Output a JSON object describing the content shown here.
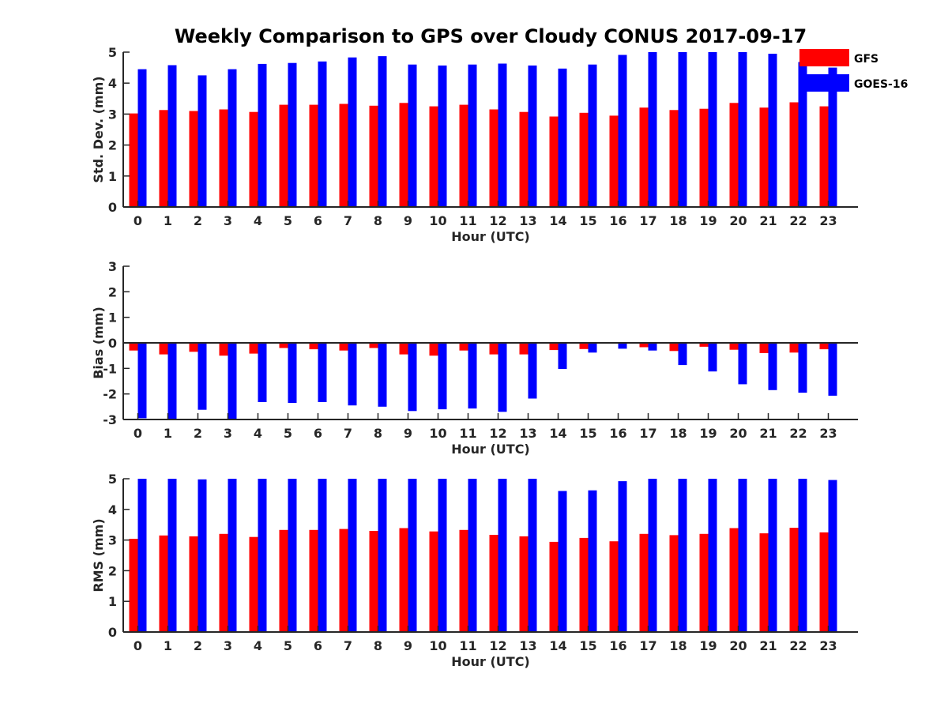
{
  "title": "Weekly Comparison to GPS over Cloudy CONUS 2017-09-17",
  "legend": {
    "placement": "top-right",
    "items": [
      {
        "label": "GFS",
        "color": "#ff0000"
      },
      {
        "label": "GOES-16",
        "color": "#0000ff"
      }
    ]
  },
  "chart_data": [
    {
      "type": "bar",
      "categories": [
        "0",
        "1",
        "2",
        "3",
        "4",
        "5",
        "6",
        "7",
        "8",
        "9",
        "10",
        "11",
        "12",
        "13",
        "14",
        "15",
        "16",
        "17",
        "18",
        "19",
        "20",
        "21",
        "22",
        "23"
      ],
      "xlabel": "Hour (UTC)",
      "ylabel": "Std. Dev. (mm)",
      "ylim": [
        0,
        5
      ],
      "yticks": [
        "0",
        "1",
        "2",
        "3",
        "4",
        "5"
      ],
      "series": [
        {
          "name": "GFS",
          "color": "#ff0000",
          "values": [
            3.02,
            3.13,
            3.1,
            3.15,
            3.07,
            3.3,
            3.3,
            3.33,
            3.27,
            3.36,
            3.25,
            3.3,
            3.15,
            3.07,
            2.92,
            3.04,
            2.95,
            3.21,
            3.13,
            3.17,
            3.36,
            3.21,
            3.38,
            3.25
          ]
        },
        {
          "name": "GOES-16",
          "color": "#0000ff",
          "values": [
            4.45,
            4.58,
            4.25,
            4.45,
            4.62,
            4.65,
            4.7,
            4.83,
            4.87,
            4.6,
            4.57,
            4.6,
            4.63,
            4.57,
            4.47,
            4.6,
            4.91,
            5.0,
            5.0,
            5.0,
            5.0,
            4.95,
            4.68,
            4.5
          ]
        }
      ]
    },
    {
      "type": "bar",
      "categories": [
        "0",
        "1",
        "2",
        "3",
        "4",
        "5",
        "6",
        "7",
        "8",
        "9",
        "10",
        "11",
        "12",
        "13",
        "14",
        "15",
        "16",
        "17",
        "18",
        "19",
        "20",
        "21",
        "22",
        "23"
      ],
      "xlabel": "Hour (UTC)",
      "ylabel": "Bias (mm)",
      "ylim": [
        -3,
        3
      ],
      "yticks": [
        "-3",
        "-2",
        "-1",
        "0",
        "1",
        "2",
        "3"
      ],
      "series": [
        {
          "name": "GFS",
          "color": "#ff0000",
          "values": [
            -0.3,
            -0.45,
            -0.35,
            -0.5,
            -0.42,
            -0.2,
            -0.25,
            -0.3,
            -0.2,
            -0.45,
            -0.5,
            -0.3,
            -0.45,
            -0.45,
            -0.28,
            -0.24,
            -0.03,
            -0.17,
            -0.32,
            -0.15,
            -0.27,
            -0.4,
            -0.38,
            -0.25
          ]
        },
        {
          "name": "GOES-16",
          "color": "#0000ff",
          "values": [
            -2.95,
            -3.0,
            -2.62,
            -3.0,
            -2.32,
            -2.35,
            -2.32,
            -2.45,
            -2.5,
            -2.67,
            -2.6,
            -2.57,
            -2.7,
            -2.18,
            -1.02,
            -0.38,
            -0.23,
            -0.3,
            -0.87,
            -1.12,
            -1.62,
            -1.85,
            -1.95,
            -2.07
          ]
        }
      ]
    },
    {
      "type": "bar",
      "categories": [
        "0",
        "1",
        "2",
        "3",
        "4",
        "5",
        "6",
        "7",
        "8",
        "9",
        "10",
        "11",
        "12",
        "13",
        "14",
        "15",
        "16",
        "17",
        "18",
        "19",
        "20",
        "21",
        "22",
        "23"
      ],
      "xlabel": "Hour (UTC)",
      "ylabel": "RMS (mm)",
      "ylim": [
        0,
        5
      ],
      "yticks": [
        "0",
        "1",
        "2",
        "3",
        "4",
        "5"
      ],
      "series": [
        {
          "name": "GFS",
          "color": "#ff0000",
          "values": [
            3.04,
            3.15,
            3.12,
            3.2,
            3.1,
            3.33,
            3.33,
            3.36,
            3.3,
            3.39,
            3.28,
            3.33,
            3.17,
            3.12,
            2.94,
            3.07,
            2.96,
            3.2,
            3.16,
            3.2,
            3.39,
            3.22,
            3.4,
            3.25
          ]
        },
        {
          "name": "GOES-16",
          "color": "#0000ff",
          "values": [
            5.0,
            5.0,
            4.98,
            5.0,
            5.0,
            5.0,
            5.0,
            5.0,
            5.0,
            5.0,
            5.0,
            5.0,
            5.0,
            5.0,
            4.6,
            4.62,
            4.92,
            5.0,
            5.0,
            5.0,
            5.0,
            5.0,
            5.0,
            4.96
          ]
        }
      ]
    }
  ]
}
